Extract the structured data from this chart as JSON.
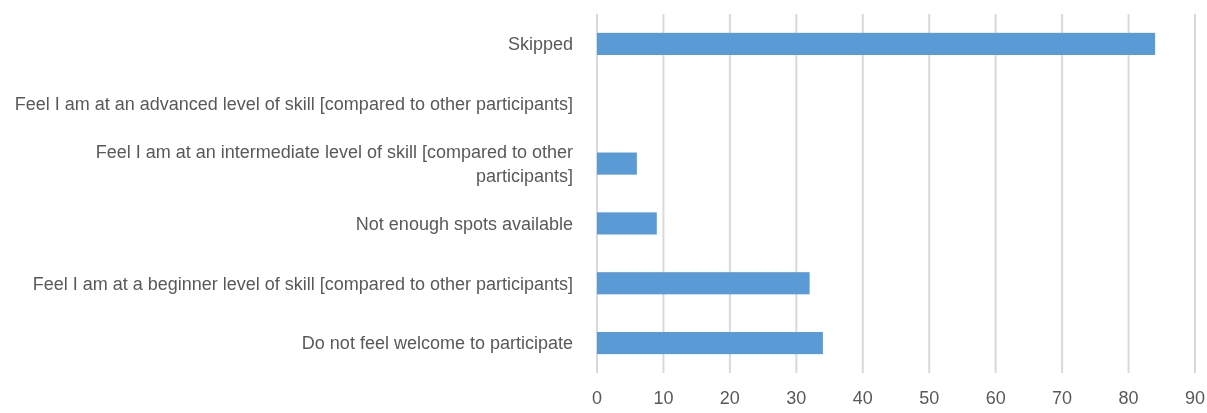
{
  "chart_data": {
    "type": "bar",
    "orientation": "horizontal",
    "categories": [
      "Skipped",
      "Feel I am at an advanced level of skill [compared to other participants]",
      "Feel I am at an intermediate level of skill [compared to other participants]",
      "Not enough spots available",
      "Feel I am at a beginner level of skill [compared to other participants]",
      "Do not feel welcome to participate"
    ],
    "values": [
      84,
      0,
      6,
      9,
      32,
      34
    ],
    "color": "#5b9bd5",
    "xlim": [
      0,
      90
    ],
    "xticks": [
      0,
      10,
      20,
      30,
      40,
      50,
      60,
      70,
      80,
      90
    ],
    "grid": "x"
  }
}
